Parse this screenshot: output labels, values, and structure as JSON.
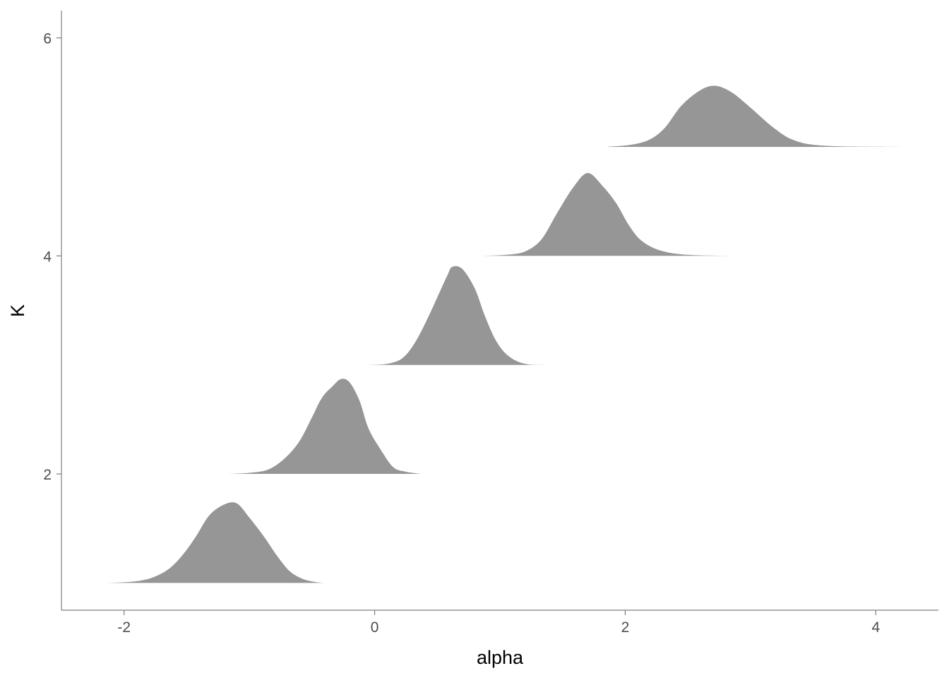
{
  "chart_data": {
    "type": "area",
    "subtype": "ridgeline",
    "xlabel": "alpha",
    "ylabel": "K",
    "xlim": [
      -2.5,
      4.5
    ],
    "ylim": [
      0.75,
      6.25
    ],
    "xticks": [
      -2,
      0,
      2,
      4
    ],
    "yticks": [
      2,
      4,
      6
    ],
    "grid": false,
    "fill_color": "#969696",
    "axis_color": "#7f7f7f",
    "series": [
      {
        "name": "1",
        "baseline": 1,
        "points": [
          [
            -2.13,
            0
          ],
          [
            -1.95,
            0.01
          ],
          [
            -1.83,
            0.03
          ],
          [
            -1.73,
            0.07
          ],
          [
            -1.63,
            0.14
          ],
          [
            -1.53,
            0.26
          ],
          [
            -1.43,
            0.42
          ],
          [
            -1.32,
            0.62
          ],
          [
            -1.2,
            0.72
          ],
          [
            -1.1,
            0.73
          ],
          [
            -1.0,
            0.6
          ],
          [
            -0.88,
            0.42
          ],
          [
            -0.78,
            0.25
          ],
          [
            -0.68,
            0.11
          ],
          [
            -0.58,
            0.04
          ],
          [
            -0.48,
            0.01
          ],
          [
            -0.4,
            0
          ]
        ]
      },
      {
        "name": "2",
        "baseline": 2,
        "points": [
          [
            -1.17,
            0
          ],
          [
            -1.0,
            0.01
          ],
          [
            -0.85,
            0.04
          ],
          [
            -0.72,
            0.14
          ],
          [
            -0.6,
            0.3
          ],
          [
            -0.5,
            0.52
          ],
          [
            -0.42,
            0.7
          ],
          [
            -0.34,
            0.8
          ],
          [
            -0.27,
            0.87
          ],
          [
            -0.2,
            0.84
          ],
          [
            -0.12,
            0.67
          ],
          [
            -0.05,
            0.42
          ],
          [
            0.05,
            0.22
          ],
          [
            0.15,
            0.06
          ],
          [
            0.25,
            0.02
          ],
          [
            0.37,
            0
          ]
        ]
      },
      {
        "name": "3",
        "baseline": 3,
        "points": [
          [
            -0.05,
            0
          ],
          [
            0.1,
            0.01
          ],
          [
            0.22,
            0.06
          ],
          [
            0.32,
            0.2
          ],
          [
            0.42,
            0.42
          ],
          [
            0.5,
            0.62
          ],
          [
            0.58,
            0.82
          ],
          [
            0.62,
            0.9
          ],
          [
            0.7,
            0.88
          ],
          [
            0.8,
            0.7
          ],
          [
            0.88,
            0.45
          ],
          [
            0.97,
            0.22
          ],
          [
            1.07,
            0.08
          ],
          [
            1.2,
            0.01
          ],
          [
            1.37,
            0
          ]
        ]
      },
      {
        "name": "4",
        "baseline": 4,
        "points": [
          [
            0.85,
            0
          ],
          [
            1.05,
            0.01
          ],
          [
            1.2,
            0.04
          ],
          [
            1.33,
            0.15
          ],
          [
            1.45,
            0.38
          ],
          [
            1.58,
            0.62
          ],
          [
            1.7,
            0.76
          ],
          [
            1.82,
            0.64
          ],
          [
            1.93,
            0.48
          ],
          [
            2.03,
            0.28
          ],
          [
            2.13,
            0.14
          ],
          [
            2.28,
            0.05
          ],
          [
            2.5,
            0.01
          ],
          [
            2.9,
            0
          ]
        ]
      },
      {
        "name": "5",
        "baseline": 5,
        "points": [
          [
            1.85,
            0
          ],
          [
            2.05,
            0.02
          ],
          [
            2.2,
            0.07
          ],
          [
            2.32,
            0.18
          ],
          [
            2.45,
            0.38
          ],
          [
            2.6,
            0.52
          ],
          [
            2.72,
            0.56
          ],
          [
            2.85,
            0.5
          ],
          [
            3.0,
            0.36
          ],
          [
            3.18,
            0.18
          ],
          [
            3.35,
            0.06
          ],
          [
            3.6,
            0.01
          ],
          [
            4.2,
            0
          ]
        ]
      }
    ]
  }
}
